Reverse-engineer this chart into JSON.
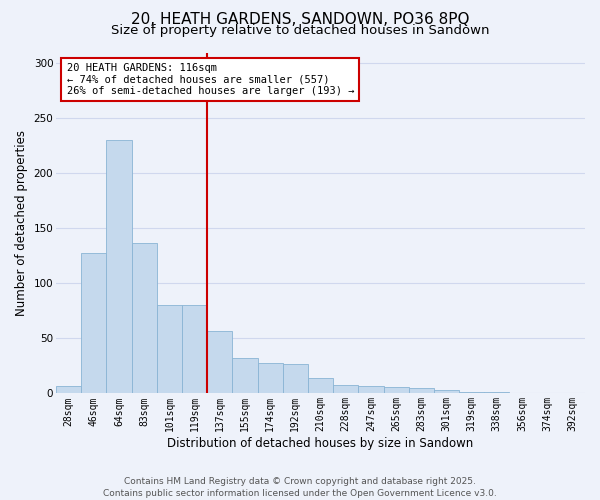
{
  "title": "20, HEATH GARDENS, SANDOWN, PO36 8PQ",
  "subtitle": "Size of property relative to detached houses in Sandown",
  "xlabel": "Distribution of detached houses by size in Sandown",
  "ylabel": "Number of detached properties",
  "categories": [
    "28sqm",
    "46sqm",
    "64sqm",
    "83sqm",
    "101sqm",
    "119sqm",
    "137sqm",
    "155sqm",
    "174sqm",
    "192sqm",
    "210sqm",
    "228sqm",
    "247sqm",
    "265sqm",
    "283sqm",
    "301sqm",
    "319sqm",
    "338sqm",
    "356sqm",
    "374sqm",
    "392sqm"
  ],
  "values": [
    7,
    128,
    230,
    137,
    80,
    80,
    57,
    32,
    28,
    27,
    14,
    8,
    7,
    6,
    5,
    3,
    1,
    1,
    0,
    0,
    0
  ],
  "bar_color": "#c5d9ed",
  "bar_edge_color": "#8ab4d4",
  "vline_x_index": 5,
  "vline_color": "#cc0000",
  "annotation_text": "20 HEATH GARDENS: 116sqm\n← 74% of detached houses are smaller (557)\n26% of semi-detached houses are larger (193) →",
  "annotation_box_facecolor": "#ffffff",
  "annotation_box_edgecolor": "#cc0000",
  "ylim": [
    0,
    310
  ],
  "yticks": [
    0,
    50,
    100,
    150,
    200,
    250,
    300
  ],
  "footer_line1": "Contains HM Land Registry data © Crown copyright and database right 2025.",
  "footer_line2": "Contains public sector information licensed under the Open Government Licence v3.0.",
  "bg_color": "#eef2fa",
  "grid_color": "#d0d8ee",
  "title_fontsize": 11,
  "subtitle_fontsize": 9.5,
  "axis_label_fontsize": 8.5,
  "tick_fontsize": 7,
  "annotation_fontsize": 7.5,
  "footer_fontsize": 6.5
}
